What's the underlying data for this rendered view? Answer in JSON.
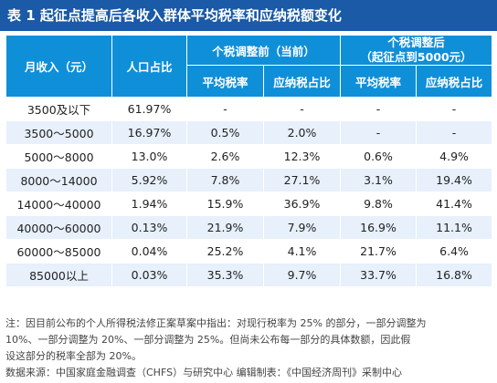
{
  "title": "表 1  起征点提高后各收入群体平均税率和应纳税额变化",
  "headers": {
    "income": "月收入（元）",
    "population": "人口占比",
    "before_group": "个税调整前（当前）",
    "after_group_line1": "个税调整后",
    "after_group_line2": "（起征点到5000元）",
    "avg_rate": "平均税率",
    "tax_share": "应纳税占比"
  },
  "rows": [
    {
      "income": "3500及以下",
      "pop": "61.97%",
      "b_avg": "-",
      "b_share": "-",
      "a_avg": "-",
      "a_share": "-"
    },
    {
      "income": "3500～5000",
      "pop": "16.97%",
      "b_avg": "0.5%",
      "b_share": "2.0%",
      "a_avg": "-",
      "a_share": "-"
    },
    {
      "income": "5000～8000",
      "pop": "13.0%",
      "b_avg": "2.6%",
      "b_share": "12.3%",
      "a_avg": "0.6%",
      "a_share": "4.9%"
    },
    {
      "income": "8000～14000",
      "pop": "5.92%",
      "b_avg": "7.8%",
      "b_share": "27.1%",
      "a_avg": "3.1%",
      "a_share": "19.4%"
    },
    {
      "income": "14000～40000",
      "pop": "1.94%",
      "b_avg": "15.9%",
      "b_share": "36.9%",
      "a_avg": "9.8%",
      "a_share": "41.4%"
    },
    {
      "income": "40000～60000",
      "pop": "0.13%",
      "b_avg": "21.9%",
      "b_share": "7.9%",
      "a_avg": "16.9%",
      "a_share": "11.1%"
    },
    {
      "income": "60000～85000",
      "pop": "0.04%",
      "b_avg": "25.2%",
      "b_share": "4.1%",
      "a_avg": "21.7%",
      "a_share": "6.4%"
    },
    {
      "income": "85000以上",
      "pop": "0.03%",
      "b_avg": "35.3%",
      "b_share": "9.7%",
      "a_avg": "33.7%",
      "a_share": "16.8%"
    }
  ],
  "note_line1": "注：因目前公布的个人所得税法修正案草案中指出：对现行税率为 25% 的部分，一部分调整为",
  "note_line2": "10%、一部分调整为 20%、一部分调整为 25%。但尚未公布每一部分的具体数额，因此假",
  "note_line3": "设这部分的税率全部为 20%。",
  "source_line": "数据来源：中国家庭金融调查（CHFS）与研究中心    编辑制表：《中国经济周刊》采制中心",
  "colors": {
    "title_bg": "#1a5aa6",
    "header_bg": "#0f8fd8",
    "row_alt_bg": "#e7f0fb"
  }
}
